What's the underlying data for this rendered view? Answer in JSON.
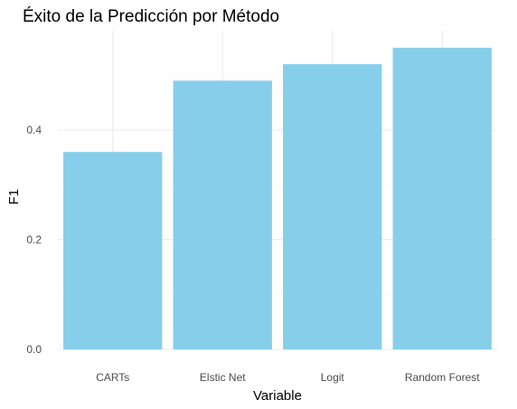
{
  "chart_data": {
    "type": "bar",
    "title": "Éxito de la Predicción por Método",
    "xlabel": "Variable",
    "ylabel": "F1",
    "categories": [
      "CARTs",
      "Elstic Net",
      "Logit",
      "Random Forest"
    ],
    "values": [
      0.36,
      0.49,
      0.52,
      0.55
    ],
    "ylim": [
      0,
      0.58
    ],
    "yticks": [
      0.0,
      0.2,
      0.4
    ],
    "ytick_labels": [
      "0.0",
      "0.2",
      "0.4"
    ],
    "grid": true,
    "bar_color": "#87CEEB",
    "legend": "none"
  }
}
